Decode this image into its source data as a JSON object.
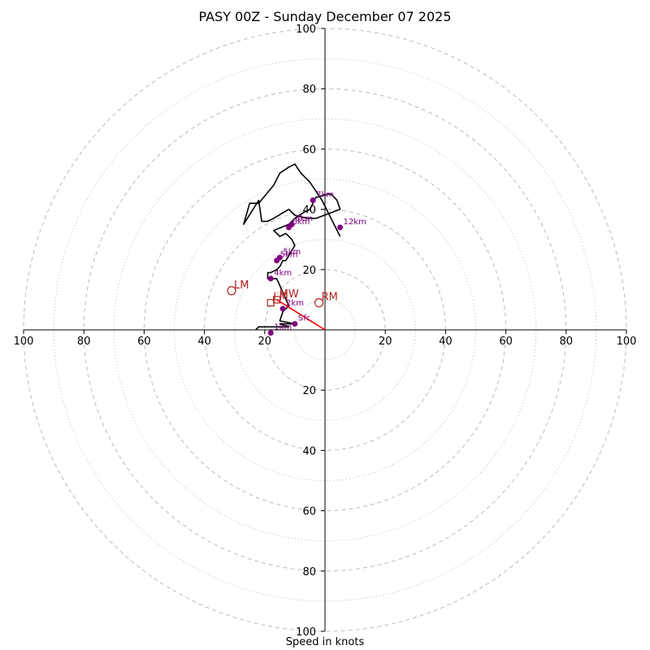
{
  "chart_data": {
    "type": "hodograph",
    "title": "PASY 00Z - Sunday December 07 2025",
    "xlabel": "Speed in knots",
    "units": "knots",
    "range": [
      -100,
      100
    ],
    "ring_major_knots": [
      20,
      40,
      60,
      80,
      100
    ],
    "ring_minor_knots": [
      10,
      30,
      50,
      70,
      90
    ],
    "axis_ticks": {
      "top": [
        "100",
        "80",
        "60",
        "40",
        "20"
      ],
      "bottom": [
        "20",
        "40",
        "60",
        "80",
        "100"
      ],
      "left": [
        "100",
        "80",
        "60",
        "40",
        "20"
      ],
      "right": [
        "20",
        "40",
        "60",
        "80",
        "100"
      ]
    },
    "trace": {
      "name": "wind profile",
      "u": [
        -23,
        -22,
        -19,
        -12,
        -15,
        -10,
        -15,
        -14,
        -12,
        -16,
        -17,
        -19,
        -19,
        -18,
        -16,
        -15,
        -14,
        -13,
        -10,
        -11,
        -13,
        -15,
        -17,
        -12,
        -10,
        -7,
        -5,
        -3,
        1,
        2,
        4,
        5,
        -3,
        -6,
        -10,
        -12,
        -17,
        -19,
        -21,
        -22,
        -27,
        -25,
        -22,
        -17,
        -15,
        -12,
        -10,
        -8,
        -5,
        -3,
        -1,
        2,
        5
      ],
      "v": [
        0,
        1,
        1,
        1,
        2,
        2,
        3,
        6,
        8,
        17,
        17,
        17,
        19,
        19,
        20,
        21,
        23,
        23,
        28,
        30,
        32,
        31,
        33,
        35,
        37,
        39,
        40,
        44,
        45,
        45,
        43,
        40,
        37,
        37,
        38,
        40,
        37,
        36,
        36,
        43,
        35,
        42,
        42,
        48,
        52,
        54,
        55,
        52,
        49,
        46,
        43,
        37,
        31
      ]
    },
    "height_markers": [
      {
        "label": "Sfc",
        "u": -10,
        "v": 2
      },
      {
        "label": "1km",
        "u": -18,
        "v": -1
      },
      {
        "label": "2km",
        "u": -14,
        "v": 7
      },
      {
        "label": "4km",
        "u": -18,
        "v": 17
      },
      {
        "label": "5km",
        "u": -16,
        "v": 23
      },
      {
        "label": "5km",
        "u": -15,
        "v": 24
      },
      {
        "label": "6km",
        "u": -12,
        "v": 34
      },
      {
        "label": "8km",
        "u": -11,
        "v": 35
      },
      {
        "label": "7km",
        "u": -4,
        "v": 43
      },
      {
        "label": "12km",
        "u": 5,
        "v": 34
      }
    ],
    "storm_motion": [
      {
        "label": "LM",
        "u": -31,
        "v": 13
      },
      {
        "label": "RM",
        "u": -2,
        "v": 9
      },
      {
        "label": "MW",
        "u": -16,
        "v": 10
      },
      {
        "label": "LM",
        "u": -18,
        "v": 9
      }
    ],
    "shear_vector": {
      "from_u": 0,
      "from_v": 0,
      "to_u": -16,
      "to_v": 10
    },
    "colors": {
      "trace": "#000000",
      "markers": "#800080",
      "storm_motion": "#b22222",
      "shear_vector": "#ff0000",
      "grid": "#bbbbbb",
      "axes": "#000000"
    }
  }
}
